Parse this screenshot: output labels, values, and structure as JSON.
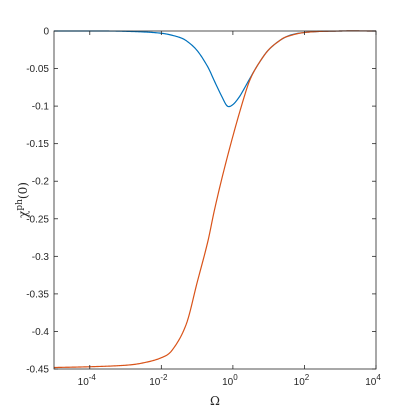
{
  "chart_data": {
    "type": "line",
    "xscale": "log",
    "xlim": [
      1e-05,
      10000
    ],
    "ylim": [
      -0.45,
      0
    ],
    "xlabel": "Ω",
    "ylabel": "χ^ph(0)",
    "grid": false,
    "legend": "none",
    "x_ticks": [
      {
        "label_base": "10",
        "label_exp": "-4",
        "value": 0.0001
      },
      {
        "label_base": "10",
        "label_exp": "-2",
        "value": 0.01
      },
      {
        "label_base": "10",
        "label_exp": "0",
        "value": 1
      },
      {
        "label_base": "10",
        "label_exp": "2",
        "value": 100
      },
      {
        "label_base": "10",
        "label_exp": "4",
        "value": 10000
      }
    ],
    "y_ticks": [
      {
        "label": "0",
        "value": 0
      },
      {
        "label": "-0.05",
        "value": -0.05
      },
      {
        "label": "-0.1",
        "value": -0.1
      },
      {
        "label": "-0.15",
        "value": -0.15
      },
      {
        "label": "-0.2",
        "value": -0.2
      },
      {
        "label": "-0.25",
        "value": -0.25
      },
      {
        "label": "-0.3",
        "value": -0.3
      },
      {
        "label": "-0.35",
        "value": -0.35
      },
      {
        "label": "-0.4",
        "value": -0.4
      },
      {
        "label": "-0.45",
        "value": -0.45
      }
    ],
    "series": [
      {
        "color": "#0072BD",
        "x": [
          1e-05,
          0.0001,
          0.001,
          0.01,
          0.03,
          0.05,
          0.1,
          0.2,
          0.3,
          0.5,
          0.7,
          1,
          1.5,
          2,
          3,
          5,
          10,
          30,
          100,
          1000,
          10000
        ],
        "y": [
          0,
          0,
          -0.0004,
          -0.003,
          -0.008,
          -0.013,
          -0.026,
          -0.048,
          -0.066,
          -0.088,
          -0.1,
          -0.098,
          -0.088,
          -0.078,
          -0.063,
          -0.045,
          -0.025,
          -0.008,
          -0.002,
          0,
          0
        ]
      },
      {
        "color": "#D95319",
        "x": [
          1e-05,
          0.0001,
          0.001,
          0.003,
          0.01,
          0.02,
          0.05,
          0.1,
          0.2,
          0.3,
          0.5,
          1,
          2,
          3,
          5,
          10,
          20,
          30,
          100,
          1000,
          10000
        ],
        "y": [
          -0.448,
          -0.447,
          -0.445,
          -0.442,
          -0.435,
          -0.425,
          -0.39,
          -0.335,
          -0.28,
          -0.24,
          -0.195,
          -0.14,
          -0.09,
          -0.065,
          -0.045,
          -0.025,
          -0.013,
          -0.008,
          -0.002,
          0,
          0
        ]
      }
    ]
  }
}
